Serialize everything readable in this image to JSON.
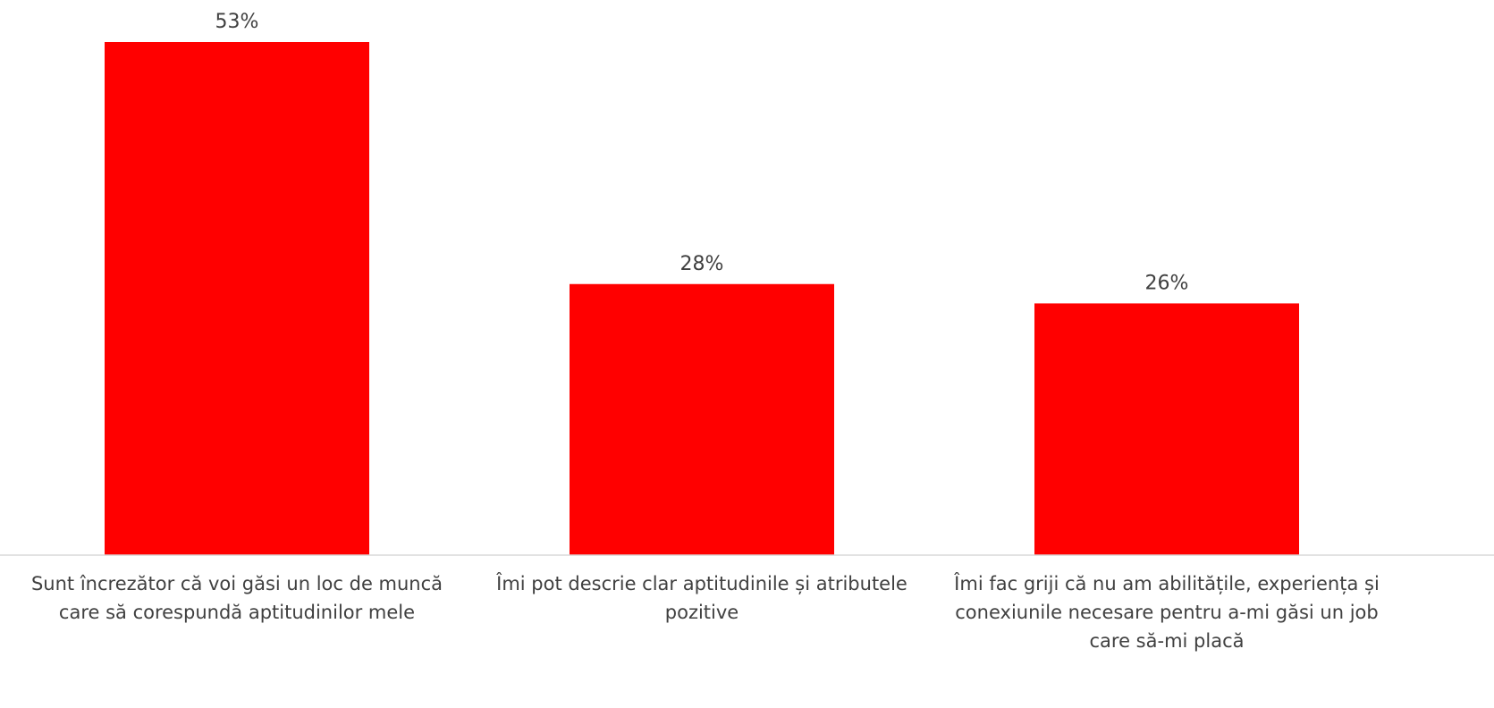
{
  "chart_data": {
    "type": "bar",
    "categories": [
      "Sunt încrezător că voi găsi un loc de muncă care să corespundă aptitudinilor mele",
      "Îmi pot descrie clar aptitudinile și atributele pozitive",
      "Îmi fac griji că nu am abilitățile, experiența și conexiunile necesare pentru a-mi găsi un job care să-mi placă"
    ],
    "values": [
      53,
      28,
      26
    ],
    "value_labels": [
      "53%",
      "28%",
      "26%"
    ],
    "title": "",
    "xlabel": "",
    "ylabel": "",
    "ylim": [
      0,
      53
    ],
    "grid": false,
    "legend": "none",
    "colors": {
      "bar": "#ff0000",
      "axis": "#d9d9d9",
      "text": "#404040"
    }
  }
}
